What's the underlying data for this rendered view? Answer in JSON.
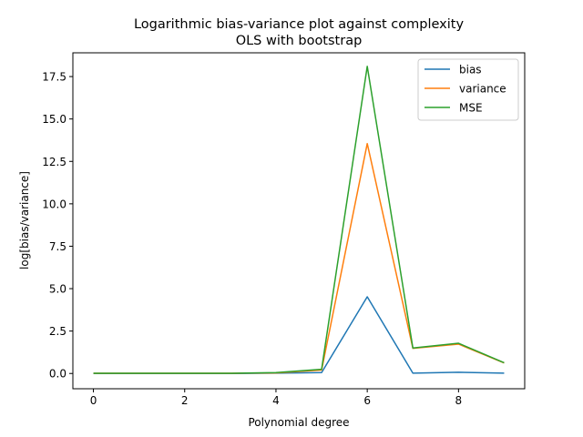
{
  "chart_data": {
    "type": "line",
    "title_line1": "Logarithmic bias-variance plot against complexity",
    "title_line2": "OLS with bootstrap",
    "xlabel": "Polynomial degree",
    "ylabel": "log[bias/variance]",
    "xlim": [
      -0.45,
      9.45
    ],
    "ylim": [
      -0.9,
      18.9
    ],
    "xticks": [
      0,
      2,
      4,
      6,
      8
    ],
    "xtick_labels": [
      "0",
      "2",
      "4",
      "6",
      "8"
    ],
    "yticks": [
      0.0,
      2.5,
      5.0,
      7.5,
      10.0,
      12.5,
      15.0,
      17.5
    ],
    "ytick_labels": [
      "0.0",
      "2.5",
      "5.0",
      "7.5",
      "10.0",
      "12.5",
      "15.0",
      "17.5"
    ],
    "x": [
      0,
      1,
      2,
      3,
      4,
      5,
      6,
      7,
      8,
      9
    ],
    "series": [
      {
        "name": "bias",
        "color": "#1f77b4",
        "values": [
          0.0,
          0.0,
          0.0,
          0.0,
          0.02,
          0.05,
          4.52,
          0.02,
          0.07,
          0.02
        ]
      },
      {
        "name": "variance",
        "color": "#ff7f0e",
        "values": [
          0.01,
          0.01,
          0.01,
          0.01,
          0.03,
          0.2,
          13.55,
          1.48,
          1.73,
          0.62
        ]
      },
      {
        "name": "MSE",
        "color": "#2ca02c",
        "values": [
          0.01,
          0.01,
          0.01,
          0.01,
          0.05,
          0.25,
          18.1,
          1.5,
          1.78,
          0.63
        ]
      }
    ],
    "legend_position": "upper right",
    "grid": false
  }
}
